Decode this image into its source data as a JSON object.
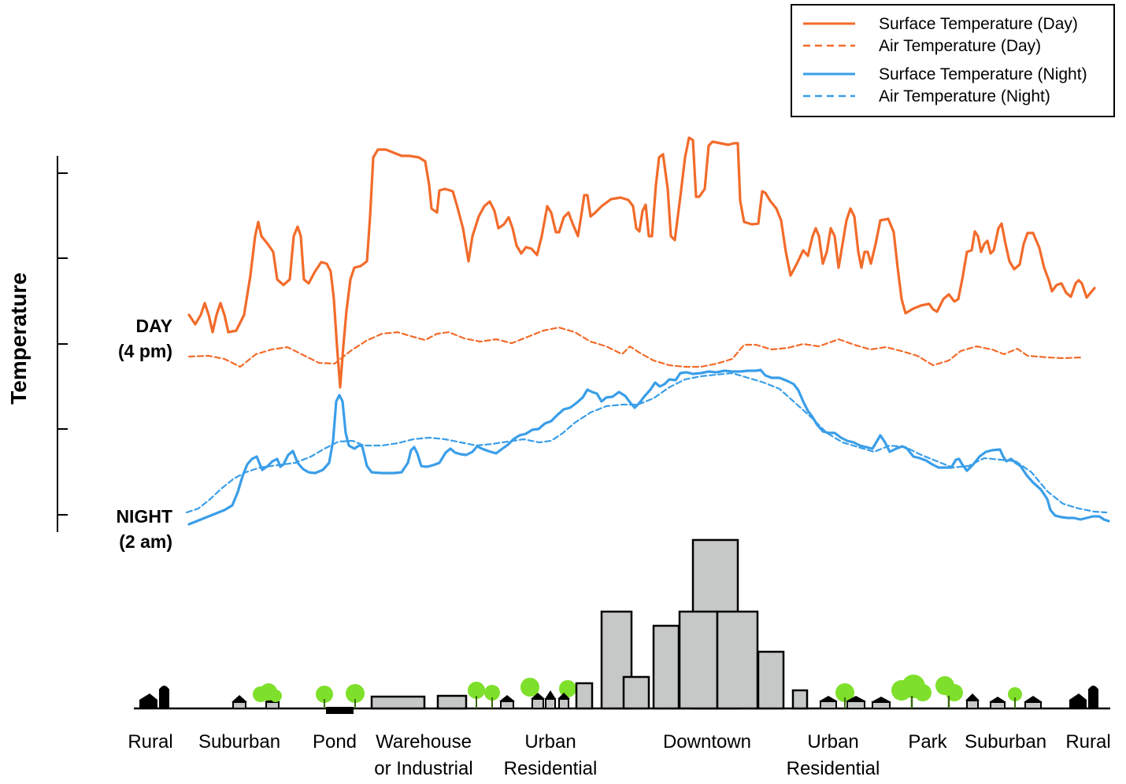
{
  "axis": {
    "title": "Temperature",
    "tick_count": 5
  },
  "side_labels": {
    "day_line1": "DAY",
    "day_line2": "(4 pm)",
    "night_line1": "NIGHT",
    "night_line2": "(2 am)"
  },
  "legend": {
    "day_surface": "Surface Temperature (Day)",
    "day_air": "Air Temperature  (Day)",
    "night_surface": "Surface Temperature (Night)",
    "night_air": "Air Temperature (Night)"
  },
  "colors": {
    "day": "#f26b2a",
    "night": "#3a9ee8",
    "building": "#c5c8c7",
    "tree": "#7ee02a"
  },
  "zones": [
    {
      "line1": "Rural"
    },
    {
      "line1": "Suburban"
    },
    {
      "line1": "Pond"
    },
    {
      "line1": "Warehouse",
      "line2": "or Industrial"
    },
    {
      "line1": "Urban",
      "line2": "Residential"
    },
    {
      "line1": "Downtown"
    },
    {
      "line1": "Urban",
      "line2": "Residential"
    },
    {
      "line1": "Park"
    },
    {
      "line1": "Suburban"
    },
    {
      "line1": "Rural"
    }
  ]
}
